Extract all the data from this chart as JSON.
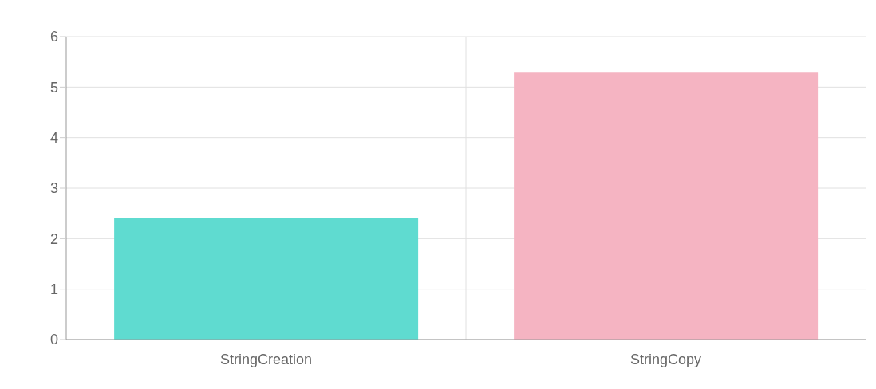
{
  "chart_data": {
    "type": "bar",
    "categories": [
      "StringCreation",
      "StringCopy"
    ],
    "values": [
      2.4,
      5.3
    ],
    "colors": [
      "#5fdbd0",
      "#f5b4c2"
    ],
    "ylim": [
      0,
      6
    ],
    "yticks": [
      0,
      1,
      2,
      3,
      4,
      5,
      6
    ],
    "grid": true
  }
}
